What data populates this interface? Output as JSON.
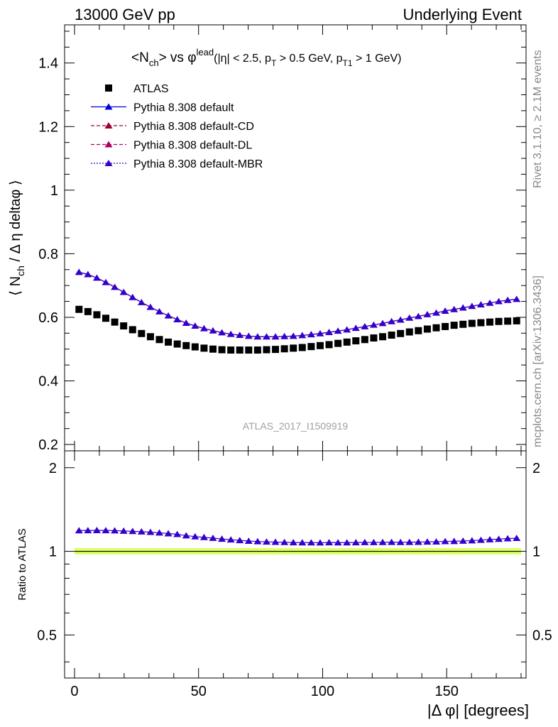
{
  "header": {
    "left": "13000 GeV pp",
    "right": "Underlying Event"
  },
  "side_text": {
    "rivet": "Rivet 3.1.10, ≥ 2.1M events",
    "mcplots": "mcplots.cern.ch [arXiv:1306.3436]"
  },
  "chart_data": {
    "type": "scatter",
    "title": {
      "main": "<N",
      "main_sub": "ch",
      "vs": "> vs φ",
      "vs_sup": "lead",
      "cut1": "(|η| < 2.5, p",
      "cut1_sub": "T",
      "cut2": " > 0.5 GeV, p",
      "cut2_sub": "T1",
      "cut3": " > 1 GeV)"
    },
    "analysis_label": "ATLAS_2017_I1509919",
    "ylabel": {
      "part1": "⟨ N",
      "sub": "ch",
      "part2": " / Δ η deltaφ ⟩"
    },
    "ratio_ylabel": "Ratio to ATLAS",
    "xlabel": "|Δ φ| [degrees]",
    "xlim": [
      -4,
      182
    ],
    "ylim": [
      0.18,
      1.52
    ],
    "ratio_ylim": [
      0.35,
      2.3
    ],
    "x_ticks": [
      "0",
      "50",
      "100",
      "150"
    ],
    "y_ticks": [
      "0.2",
      "0.4",
      "0.6",
      "0.8",
      "1",
      "1.2",
      "1.4"
    ],
    "ratio_ticks": [
      "0.5",
      "1",
      "2"
    ],
    "legend_position": "top-left",
    "legend": [
      {
        "label": "ATLAS",
        "marker": "square",
        "color": "#000000",
        "line": "none"
      },
      {
        "label": "Pythia 8.308 default",
        "marker": "triangle",
        "color": "#0000dd",
        "line": "solid"
      },
      {
        "label": "Pythia 8.308 default-CD",
        "marker": "triangle",
        "color": "#990033",
        "line": "dashed"
      },
      {
        "label": "Pythia 8.308 default-DL",
        "marker": "triangle",
        "color": "#aa0066",
        "line": "dashed"
      },
      {
        "label": "Pythia 8.308 default-MBR",
        "marker": "triangle",
        "color": "#3300cc",
        "line": "dotted"
      }
    ],
    "x": [
      1.8,
      5.4,
      9.0,
      12.6,
      16.2,
      19.8,
      23.4,
      27.0,
      30.6,
      34.2,
      37.8,
      41.4,
      45.0,
      48.6,
      52.2,
      55.8,
      59.4,
      63.0,
      66.6,
      70.2,
      73.8,
      77.4,
      81.0,
      84.6,
      88.2,
      91.8,
      95.4,
      99.0,
      102.6,
      106.2,
      109.8,
      113.4,
      117.0,
      120.6,
      124.2,
      127.8,
      131.4,
      135.0,
      138.6,
      142.2,
      145.8,
      149.4,
      153.0,
      156.6,
      160.2,
      163.8,
      167.4,
      171.0,
      174.6,
      178.2
    ],
    "series": [
      {
        "name": "ATLAS",
        "color": "#000000",
        "values": [
          0.625,
          0.618,
          0.608,
          0.597,
          0.585,
          0.573,
          0.561,
          0.549,
          0.539,
          0.53,
          0.522,
          0.516,
          0.511,
          0.507,
          0.503,
          0.5,
          0.498,
          0.497,
          0.497,
          0.497,
          0.497,
          0.498,
          0.499,
          0.501,
          0.503,
          0.505,
          0.508,
          0.511,
          0.514,
          0.518,
          0.522,
          0.526,
          0.53,
          0.535,
          0.539,
          0.544,
          0.549,
          0.554,
          0.558,
          0.563,
          0.567,
          0.571,
          0.575,
          0.578,
          0.581,
          0.583,
          0.585,
          0.587,
          0.588,
          0.589
        ]
      },
      {
        "name": "Pythia 8.308 default",
        "color": "#0000dd",
        "values": [
          0.742,
          0.735,
          0.724,
          0.71,
          0.695,
          0.679,
          0.663,
          0.647,
          0.632,
          0.618,
          0.605,
          0.593,
          0.582,
          0.573,
          0.565,
          0.558,
          0.552,
          0.547,
          0.544,
          0.541,
          0.539,
          0.539,
          0.539,
          0.54,
          0.541,
          0.543,
          0.546,
          0.549,
          0.553,
          0.557,
          0.561,
          0.566,
          0.571,
          0.576,
          0.581,
          0.587,
          0.592,
          0.598,
          0.603,
          0.609,
          0.614,
          0.62,
          0.625,
          0.63,
          0.635,
          0.64,
          0.645,
          0.65,
          0.654,
          0.657
        ]
      },
      {
        "name": "Pythia 8.308 default-CD",
        "color": "#990033",
        "values": [
          0.742,
          0.735,
          0.724,
          0.71,
          0.695,
          0.679,
          0.663,
          0.647,
          0.632,
          0.618,
          0.605,
          0.593,
          0.582,
          0.573,
          0.565,
          0.558,
          0.552,
          0.547,
          0.544,
          0.541,
          0.539,
          0.539,
          0.539,
          0.54,
          0.541,
          0.543,
          0.546,
          0.549,
          0.553,
          0.557,
          0.561,
          0.566,
          0.571,
          0.576,
          0.581,
          0.587,
          0.592,
          0.598,
          0.603,
          0.609,
          0.614,
          0.62,
          0.625,
          0.63,
          0.635,
          0.64,
          0.645,
          0.65,
          0.654,
          0.657
        ]
      },
      {
        "name": "Pythia 8.308 default-DL",
        "color": "#aa0066",
        "values": [
          0.742,
          0.735,
          0.724,
          0.71,
          0.695,
          0.679,
          0.663,
          0.647,
          0.632,
          0.618,
          0.605,
          0.593,
          0.582,
          0.573,
          0.565,
          0.558,
          0.552,
          0.547,
          0.544,
          0.541,
          0.539,
          0.539,
          0.539,
          0.54,
          0.541,
          0.543,
          0.546,
          0.549,
          0.553,
          0.557,
          0.561,
          0.566,
          0.571,
          0.576,
          0.581,
          0.587,
          0.592,
          0.598,
          0.603,
          0.609,
          0.614,
          0.62,
          0.625,
          0.63,
          0.635,
          0.64,
          0.645,
          0.65,
          0.654,
          0.657
        ]
      },
      {
        "name": "Pythia 8.308 default-MBR",
        "color": "#3300cc",
        "values": [
          0.742,
          0.735,
          0.724,
          0.71,
          0.695,
          0.679,
          0.663,
          0.647,
          0.632,
          0.618,
          0.605,
          0.593,
          0.582,
          0.573,
          0.565,
          0.558,
          0.552,
          0.547,
          0.544,
          0.541,
          0.539,
          0.539,
          0.539,
          0.54,
          0.541,
          0.543,
          0.546,
          0.549,
          0.553,
          0.557,
          0.561,
          0.566,
          0.571,
          0.576,
          0.581,
          0.587,
          0.592,
          0.598,
          0.603,
          0.609,
          0.614,
          0.62,
          0.625,
          0.63,
          0.635,
          0.64,
          0.645,
          0.65,
          0.654,
          0.657
        ]
      }
    ],
    "ratio_series": {
      "name": "Pythia 8.308 default / ATLAS",
      "values": [
        1.188,
        1.189,
        1.19,
        1.189,
        1.187,
        1.184,
        1.181,
        1.177,
        1.172,
        1.166,
        1.159,
        1.152,
        1.139,
        1.13,
        1.123,
        1.116,
        1.108,
        1.101,
        1.095,
        1.089,
        1.085,
        1.082,
        1.08,
        1.078,
        1.076,
        1.075,
        1.075,
        1.074,
        1.076,
        1.075,
        1.075,
        1.076,
        1.077,
        1.077,
        1.078,
        1.079,
        1.078,
        1.079,
        1.08,
        1.082,
        1.083,
        1.086,
        1.087,
        1.09,
        1.093,
        1.098,
        1.103,
        1.107,
        1.112,
        1.115
      ]
    },
    "reference_band": [
      0.985,
      1.015
    ]
  }
}
